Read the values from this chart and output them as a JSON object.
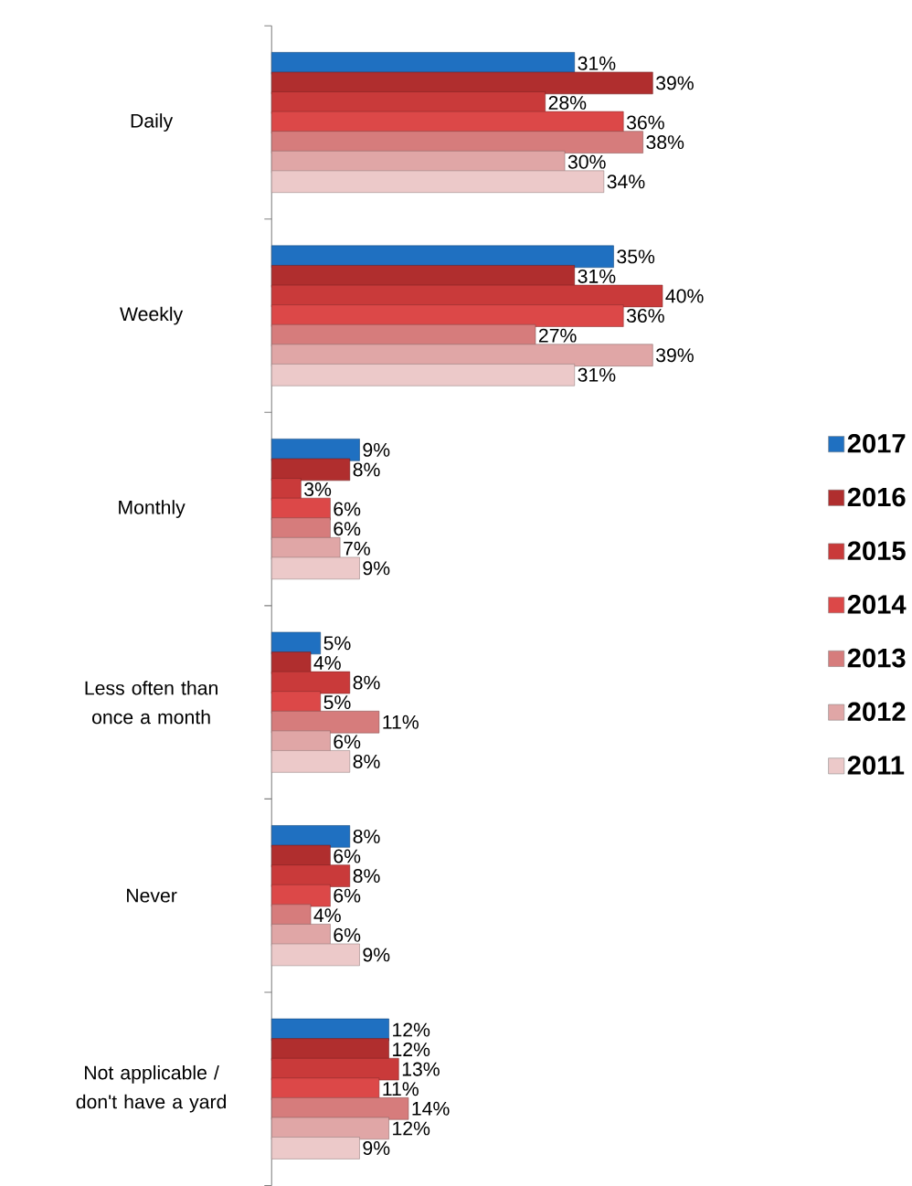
{
  "chart_data": {
    "type": "bar",
    "orientation": "horizontal",
    "legend": "right",
    "categories": [
      "Daily",
      "Weekly",
      "Monthly",
      "Less often than once a month",
      "Never",
      "Not applicable / don't have a yard"
    ],
    "series": [
      {
        "name": "2017",
        "color": "#1f70c1",
        "values": [
          31,
          35,
          9,
          5,
          8,
          12
        ],
        "value_labels": [
          "31%",
          "35%",
          "9%",
          "5%",
          "8%",
          "12%"
        ]
      },
      {
        "name": "2016",
        "color": "#b02e2e",
        "values": [
          39,
          31,
          8,
          4,
          6,
          12
        ],
        "value_labels": [
          "39%",
          "31%",
          "8%",
          "4%",
          "6%",
          "12%"
        ]
      },
      {
        "name": "2015",
        "color": "#c93a3a",
        "values": [
          28,
          40,
          3,
          8,
          8,
          13
        ],
        "value_labels": [
          "28%",
          "40%",
          "3%",
          "8%",
          "8%",
          "13%"
        ]
      },
      {
        "name": "2014",
        "color": "#dc4848",
        "values": [
          36,
          36,
          6,
          5,
          6,
          11
        ],
        "value_labels": [
          "36%",
          "36%",
          "6%",
          "5%",
          "6%",
          "11%"
        ]
      },
      {
        "name": "2013",
        "color": "#d67c7c",
        "values": [
          38,
          27,
          6,
          11,
          4,
          14
        ],
        "value_labels": [
          "38%",
          "27%",
          "6%",
          "11%",
          "4%",
          "14%"
        ]
      },
      {
        "name": "2012",
        "color": "#e0a6a6",
        "values": [
          30,
          39,
          7,
          6,
          6,
          12
        ],
        "value_labels": [
          "30%",
          "39%",
          "7%",
          "6%",
          "6%",
          "12%"
        ]
      },
      {
        "name": "2011",
        "color": "#ecc9c9",
        "values": [
          34,
          31,
          9,
          8,
          9,
          9
        ],
        "value_labels": [
          "34%",
          "31%",
          "9%",
          "8%",
          "9%",
          "9%"
        ]
      }
    ]
  }
}
